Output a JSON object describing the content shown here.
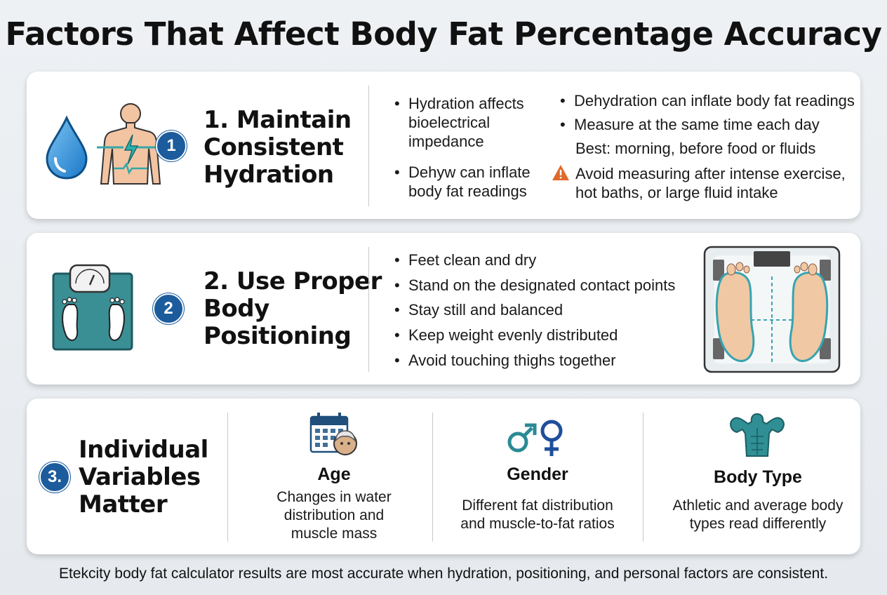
{
  "title": "Factors That Affect Body Fat Percentage Accuracy",
  "section1": {
    "heading_lines": [
      "1. Maintain",
      "Consistent",
      "Hydration"
    ],
    "badge": "1",
    "col1": [
      "Hydration affects bioelectrical impedance",
      "Dehyw can inflate body fat readings"
    ],
    "col2": [
      "Dehydration can inflate body fat readings",
      "Measure at the same time each day"
    ],
    "note": "Best: morning, before food or fluids",
    "warning": "Avoid measuring after intense exercise, hot baths, or large fluid intake"
  },
  "section2": {
    "heading_lines": [
      "2. Use Proper",
      "Body",
      "Positioning"
    ],
    "badge": "2",
    "bullets": [
      "Feet clean and dry",
      "Stand on the designated contact points",
      "Stay still and balanced",
      "Keep weight evenly distributed",
      "Avoid touching thighs together"
    ]
  },
  "section3": {
    "heading_lines": [
      "Individual",
      "Variables",
      "Matter"
    ],
    "badge": "3.",
    "factors": [
      {
        "title": "Age",
        "desc": [
          "Changes in water",
          "distribution and",
          "muscle mass"
        ]
      },
      {
        "title": "Gender",
        "desc": [
          "Different fat distribution",
          "and muscle-to-fat ratios"
        ]
      },
      {
        "title": "Body Type",
        "desc": [
          "Athletic and average body",
          "types read differently"
        ]
      }
    ]
  },
  "footer": "Etekcity body fat calculator results are most accurate when hydration, positioning, and personal factors are consistent.",
  "colors": {
    "badge": "#1c5c9c",
    "teal": "#2a8a94",
    "water": "#2e8fd8",
    "warning": "#e0692a"
  }
}
